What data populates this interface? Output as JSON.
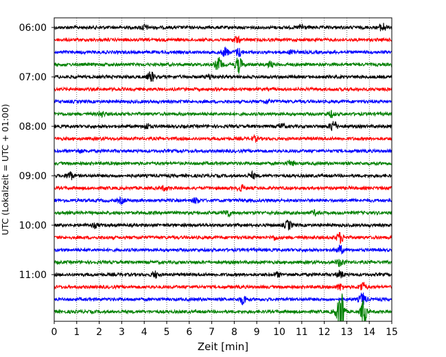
{
  "chart_data": {
    "type": "line",
    "title": "",
    "xlabel": "Zeit  [min]",
    "ylabel": "UTC (Lokalzeit = UTC + 01:00)",
    "xlim": [
      0,
      15
    ],
    "x_ticks": [
      "0",
      "1",
      "2",
      "3",
      "4",
      "5",
      "6",
      "7",
      "8",
      "9",
      "10",
      "11",
      "12",
      "13",
      "14",
      "15"
    ],
    "y_ticks": [
      "06:00",
      "07:00",
      "08:00",
      "09:00",
      "10:00",
      "11:00"
    ],
    "grid": "vertical dotted at each minute",
    "trace_interval_minutes": 15,
    "trace_colors": [
      "#000000",
      "#ff0000",
      "#0000ff",
      "#008000"
    ],
    "series": [
      {
        "start": "06:00",
        "color": "#000000",
        "events": [
          {
            "x": 4.0,
            "amp": 0.5
          },
          {
            "x": 11.0,
            "amp": 0.6
          },
          {
            "x": 14.6,
            "amp": 0.8
          }
        ]
      },
      {
        "start": "06:15",
        "color": "#ff0000",
        "events": [
          {
            "x": 8.1,
            "amp": 0.6
          }
        ]
      },
      {
        "start": "06:30",
        "color": "#0000ff",
        "events": [
          {
            "x": 7.6,
            "amp": 0.9
          },
          {
            "x": 8.2,
            "amp": 0.8
          },
          {
            "x": 10.6,
            "amp": 0.5
          }
        ]
      },
      {
        "start": "06:45",
        "color": "#008000",
        "events": [
          {
            "x": 7.3,
            "amp": 1.3
          },
          {
            "x": 8.2,
            "amp": 1.6
          },
          {
            "x": 9.6,
            "amp": 0.5
          }
        ]
      },
      {
        "start": "07:00",
        "color": "#000000",
        "events": [
          {
            "x": 4.3,
            "amp": 1.0
          },
          {
            "x": 6.9,
            "amp": 0.5
          }
        ]
      },
      {
        "start": "07:15",
        "color": "#ff0000",
        "events": []
      },
      {
        "start": "07:30",
        "color": "#0000ff",
        "events": [
          {
            "x": 9.5,
            "amp": 0.4
          }
        ]
      },
      {
        "start": "07:45",
        "color": "#008000",
        "events": [
          {
            "x": 2.1,
            "amp": 0.5
          },
          {
            "x": 12.3,
            "amp": 0.6
          }
        ]
      },
      {
        "start": "08:00",
        "color": "#000000",
        "events": [
          {
            "x": 4.1,
            "amp": 0.5
          },
          {
            "x": 10.1,
            "amp": 0.5
          },
          {
            "x": 12.4,
            "amp": 1.2
          }
        ]
      },
      {
        "start": "08:15",
        "color": "#ff0000",
        "events": [
          {
            "x": 8.9,
            "amp": 0.4
          }
        ]
      },
      {
        "start": "08:30",
        "color": "#0000ff",
        "events": [
          {
            "x": 1.1,
            "amp": 0.3
          }
        ]
      },
      {
        "start": "08:45",
        "color": "#008000",
        "events": [
          {
            "x": 10.5,
            "amp": 0.5
          }
        ]
      },
      {
        "start": "09:00",
        "color": "#000000",
        "events": [
          {
            "x": 0.7,
            "amp": 0.8
          },
          {
            "x": 8.8,
            "amp": 0.6
          }
        ]
      },
      {
        "start": "09:15",
        "color": "#ff0000",
        "events": [
          {
            "x": 8.3,
            "amp": 0.6
          },
          {
            "x": 4.9,
            "amp": 0.4
          }
        ]
      },
      {
        "start": "09:30",
        "color": "#0000ff",
        "events": [
          {
            "x": 3.0,
            "amp": 0.5
          },
          {
            "x": 6.3,
            "amp": 0.5
          }
        ]
      },
      {
        "start": "09:45",
        "color": "#008000",
        "events": [
          {
            "x": 7.7,
            "amp": 0.7
          },
          {
            "x": 11.6,
            "amp": 0.4
          }
        ]
      },
      {
        "start": "10:00",
        "color": "#000000",
        "events": [
          {
            "x": 1.8,
            "amp": 0.4
          },
          {
            "x": 10.4,
            "amp": 0.9
          }
        ]
      },
      {
        "start": "10:15",
        "color": "#ff0000",
        "events": [
          {
            "x": 12.7,
            "amp": 1.0
          },
          {
            "x": 9.8,
            "amp": 0.4
          }
        ]
      },
      {
        "start": "10:30",
        "color": "#0000ff",
        "events": [
          {
            "x": 12.7,
            "amp": 0.8
          }
        ]
      },
      {
        "start": "10:45",
        "color": "#008000",
        "events": [
          {
            "x": 12.7,
            "amp": 0.8
          }
        ]
      },
      {
        "start": "11:00",
        "color": "#000000",
        "events": [
          {
            "x": 4.5,
            "amp": 0.6
          },
          {
            "x": 9.9,
            "amp": 0.4
          },
          {
            "x": 12.7,
            "amp": 0.7
          }
        ]
      },
      {
        "start": "11:15",
        "color": "#ff0000",
        "events": [
          {
            "x": 12.7,
            "amp": 0.6
          },
          {
            "x": 13.7,
            "amp": 0.9
          }
        ]
      },
      {
        "start": "11:30",
        "color": "#0000ff",
        "events": [
          {
            "x": 8.4,
            "amp": 0.9
          },
          {
            "x": 13.7,
            "amp": 1.2
          }
        ]
      },
      {
        "start": "11:45",
        "color": "#008000",
        "events": [
          {
            "x": 12.75,
            "amp": 5.5
          },
          {
            "x": 13.75,
            "amp": 2.8
          },
          {
            "x": 12.55,
            "amp": 0.8
          }
        ]
      }
    ]
  }
}
